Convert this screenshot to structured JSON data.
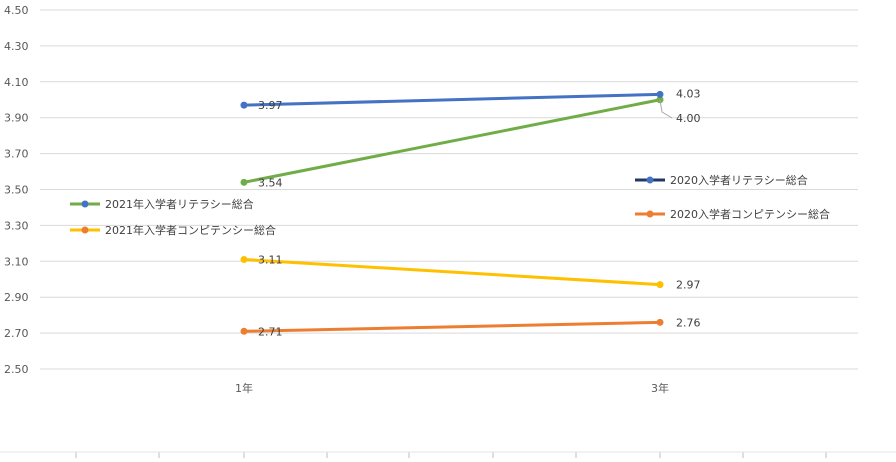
{
  "chart_data": {
    "type": "line",
    "categories": [
      "1年",
      "3年"
    ],
    "ylim": [
      2.5,
      4.5
    ],
    "yticks": [
      "2.50",
      "2.70",
      "2.90",
      "3.10",
      "3.30",
      "3.50",
      "3.70",
      "3.90",
      "4.10",
      "4.30",
      "4.50"
    ],
    "grid": true,
    "series": [
      {
        "name": "2021年入学者リテラシー総合",
        "values": [
          3.54,
          4.0
        ],
        "labels": [
          "3.54",
          "4.00"
        ],
        "color": "#70AD47"
      },
      {
        "name": "2021年入学者コンピテンシー総合",
        "values": [
          3.11,
          2.97
        ],
        "labels": [
          "3.11",
          "2.97"
        ],
        "color": "#FFC000"
      },
      {
        "name": "2020入学者リテラシー総合",
        "values": [
          3.97,
          4.03
        ],
        "labels": [
          "3.97",
          "4.03"
        ],
        "color": "#4472C4"
      },
      {
        "name": "2020入学者コンピテンシー総合",
        "values": [
          2.71,
          2.76
        ],
        "labels": [
          "2.71",
          "2.76"
        ],
        "color": "#ED7D31"
      }
    ],
    "legend_left": [
      {
        "text": "2021年入学者リテラシー総合",
        "line_color": "#70AD47",
        "marker_color": "#4472C4"
      },
      {
        "text": "2021年入学者コンピテンシー総合",
        "line_color": "#FFC000",
        "marker_color": "#ED7D31"
      }
    ],
    "legend_right": [
      {
        "text": "2020入学者リテラシー総合",
        "line_color": "#203864",
        "marker_color": "#4472C4"
      },
      {
        "text": "2020入学者コンピテンシー総合",
        "line_color": "#ED7D31",
        "marker_color": "#ED7D31"
      }
    ]
  }
}
